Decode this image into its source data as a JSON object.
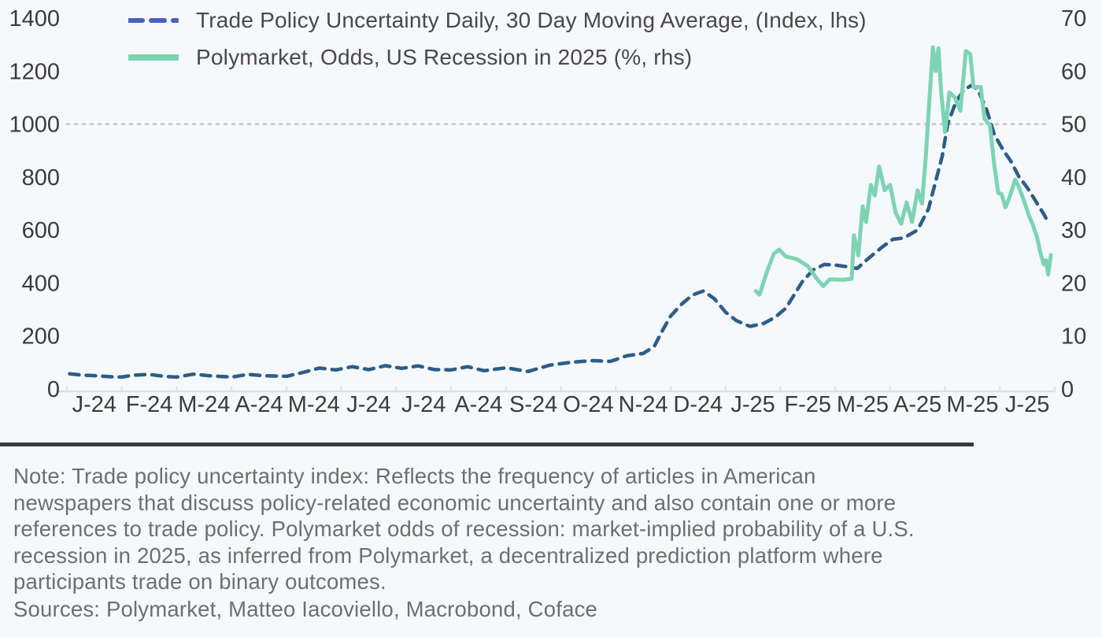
{
  "colors": {
    "background": "#f6f9fb",
    "tpu_line": "#2d5d8a",
    "tpu_legend_swatch": "#4a5fc1",
    "polymarket_line": "#7cd4b3",
    "gridline": "#c9cdd2",
    "axis_line": "#dcdfe2",
    "axis_label": "#3d3a3a",
    "legend_text": "#4b4749",
    "note_text": "#6e6e6e",
    "separator": "#3b3938"
  },
  "legend": {
    "items": [
      {
        "label": "Trade Policy Uncertainty Daily, 30 Day Moving Average, (Index, lhs)",
        "style": "dashed",
        "color": "#4a5fc1"
      },
      {
        "label": "Polymarket, Odds, US Recession in 2025 (%, rhs)",
        "style": "solid",
        "color": "#7cd4b3"
      }
    ]
  },
  "note": {
    "text": "Note: Trade policy uncertainty index: Reflects the frequency of articles in American\nnewspapers that discuss policy-related economic uncertainty and also contain one or more\nreferences to trade policy. Polymarket odds of recession: market-implied probability of a U.S.\nrecession in 2025, as inferred from Polymarket, a decentralized prediction platform where\nparticipants trade on binary outcomes."
  },
  "sources": {
    "text": "Sources: Polymarket, Matteo Iacoviello, Macrobond, Coface"
  },
  "chart_data": {
    "type": "line",
    "title": "",
    "left_axis": {
      "label": "Index (lhs)",
      "ticks": [
        0,
        200,
        400,
        600,
        800,
        1000,
        1200,
        1400
      ],
      "range": [
        0,
        1400
      ]
    },
    "right_axis": {
      "label": "% (rhs)",
      "ticks": [
        0,
        10,
        20,
        30,
        40,
        50,
        60,
        70
      ],
      "range": [
        0,
        70
      ]
    },
    "x_axis": {
      "labels": [
        "J-24",
        "F-24",
        "M-24",
        "A-24",
        "M-24",
        "J-24",
        "J-24",
        "A-24",
        "S-24",
        "O-24",
        "N-24",
        "D-24",
        "J-25",
        "F-25",
        "M-25",
        "A-25",
        "M-25",
        "J-25"
      ],
      "months_range": [
        0,
        18
      ]
    },
    "gridline": {
      "lhs_value": 1000,
      "rhs_value": 50,
      "style": "dotted"
    },
    "legend_position": "top-left",
    "series": [
      {
        "name": "Trade Policy Uncertainty Daily, 30 Day Moving Average, (Index, lhs)",
        "axis": "lhs",
        "style": "dashed",
        "color": "#2d5d8a",
        "points": [
          [
            0.05,
            57
          ],
          [
            0.3,
            52
          ],
          [
            0.55,
            50
          ],
          [
            0.8,
            46
          ],
          [
            1.0,
            45
          ],
          [
            1.2,
            52
          ],
          [
            1.5,
            55
          ],
          [
            1.8,
            47
          ],
          [
            2.0,
            45
          ],
          [
            2.3,
            56
          ],
          [
            2.6,
            50
          ],
          [
            3.0,
            45
          ],
          [
            3.3,
            55
          ],
          [
            3.6,
            50
          ],
          [
            4.0,
            48
          ],
          [
            4.3,
            62
          ],
          [
            4.6,
            79
          ],
          [
            4.9,
            72
          ],
          [
            5.2,
            84
          ],
          [
            5.5,
            73
          ],
          [
            5.8,
            88
          ],
          [
            6.1,
            78
          ],
          [
            6.4,
            87
          ],
          [
            6.7,
            73
          ],
          [
            7.0,
            72
          ],
          [
            7.3,
            84
          ],
          [
            7.6,
            69
          ],
          [
            8.0,
            80
          ],
          [
            8.4,
            66
          ],
          [
            8.8,
            90
          ],
          [
            9.2,
            101
          ],
          [
            9.6,
            107
          ],
          [
            9.9,
            104
          ],
          [
            10.2,
            125
          ],
          [
            10.5,
            134
          ],
          [
            10.7,
            160
          ],
          [
            10.85,
            220
          ],
          [
            11.0,
            275
          ],
          [
            11.2,
            320
          ],
          [
            11.4,
            355
          ],
          [
            11.6,
            370
          ],
          [
            11.8,
            340
          ],
          [
            12.0,
            290
          ],
          [
            12.2,
            258
          ],
          [
            12.45,
            236
          ],
          [
            12.7,
            248
          ],
          [
            12.9,
            270
          ],
          [
            13.1,
            305
          ],
          [
            13.4,
            405
          ],
          [
            13.6,
            450
          ],
          [
            13.8,
            470
          ],
          [
            14.0,
            468
          ],
          [
            14.2,
            462
          ],
          [
            14.4,
            455
          ],
          [
            14.6,
            492
          ],
          [
            14.85,
            535
          ],
          [
            15.05,
            565
          ],
          [
            15.25,
            570
          ],
          [
            15.5,
            600
          ],
          [
            15.7,
            680
          ],
          [
            15.85,
            800
          ],
          [
            15.95,
            880
          ],
          [
            16.05,
            1000
          ],
          [
            16.2,
            1085
          ],
          [
            16.35,
            1130
          ],
          [
            16.5,
            1148
          ],
          [
            16.6,
            1128
          ],
          [
            16.75,
            1060
          ],
          [
            16.9,
            960
          ],
          [
            17.05,
            905
          ],
          [
            17.2,
            860
          ],
          [
            17.35,
            800
          ],
          [
            17.5,
            760
          ],
          [
            17.65,
            710
          ],
          [
            17.8,
            660
          ],
          [
            17.9,
            622
          ]
        ]
      },
      {
        "name": "Polymarket, Odds, US Recession in 2025 (%, rhs)",
        "axis": "rhs",
        "style": "solid",
        "color": "#7cd4b3",
        "points": [
          [
            12.55,
            18.5
          ],
          [
            12.62,
            17.8
          ],
          [
            12.75,
            22.0
          ],
          [
            12.88,
            25.5
          ],
          [
            12.98,
            26.3
          ],
          [
            13.1,
            25.0
          ],
          [
            13.3,
            24.5
          ],
          [
            13.5,
            23.2
          ],
          [
            13.65,
            21.0
          ],
          [
            13.78,
            19.4
          ],
          [
            13.9,
            20.7
          ],
          [
            14.15,
            20.6
          ],
          [
            14.3,
            20.8
          ],
          [
            14.34,
            29.0
          ],
          [
            14.42,
            25.2
          ],
          [
            14.5,
            34.5
          ],
          [
            14.56,
            31.5
          ],
          [
            14.65,
            38.5
          ],
          [
            14.72,
            36.5
          ],
          [
            14.8,
            42.0
          ],
          [
            14.9,
            37.5
          ],
          [
            15.0,
            38.5
          ],
          [
            15.1,
            33.3
          ],
          [
            15.2,
            31.2
          ],
          [
            15.3,
            35.2
          ],
          [
            15.4,
            31.5
          ],
          [
            15.5,
            37.5
          ],
          [
            15.58,
            35.0
          ],
          [
            15.65,
            44.0
          ],
          [
            15.7,
            52.0
          ],
          [
            15.78,
            64.5
          ],
          [
            15.83,
            60.0
          ],
          [
            15.88,
            64.3
          ],
          [
            15.93,
            56.0
          ],
          [
            16.0,
            48.5
          ],
          [
            16.08,
            56.0
          ],
          [
            16.18,
            55.0
          ],
          [
            16.28,
            52.5
          ],
          [
            16.38,
            63.8
          ],
          [
            16.46,
            63.2
          ],
          [
            16.52,
            57.0
          ],
          [
            16.65,
            57.0
          ],
          [
            16.72,
            51.0
          ],
          [
            16.82,
            49.7
          ],
          [
            16.9,
            42.0
          ],
          [
            16.97,
            37.0
          ],
          [
            17.03,
            36.8
          ],
          [
            17.1,
            34.3
          ],
          [
            17.17,
            36.0
          ],
          [
            17.28,
            39.5
          ],
          [
            17.35,
            38.0
          ],
          [
            17.45,
            35.2
          ],
          [
            17.52,
            33.0
          ],
          [
            17.6,
            31.0
          ],
          [
            17.68,
            28.5
          ],
          [
            17.74,
            25.6
          ],
          [
            17.8,
            23.5
          ],
          [
            17.84,
            24.3
          ],
          [
            17.88,
            21.6
          ],
          [
            17.93,
            25.3
          ]
        ]
      }
    ]
  }
}
